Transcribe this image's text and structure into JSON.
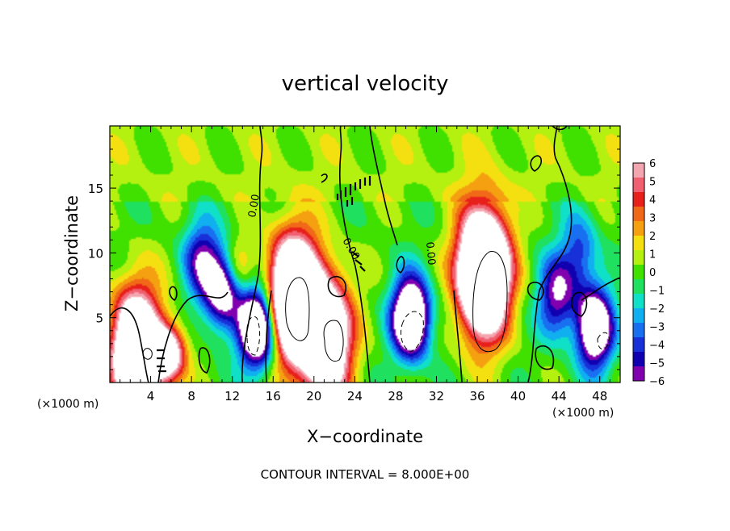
{
  "chart_data": {
    "type": "heatmap",
    "title": "vertical velocity",
    "xlabel": "X−coordinate",
    "ylabel": "Z−coordinate",
    "x_unit": "(×1000 m)",
    "x_unit_right": "(×1000 m)",
    "footer": "CONTOUR INTERVAL = 8.000E+00",
    "xlim": [
      0,
      50
    ],
    "ylim": [
      0,
      19.8
    ],
    "x_ticks": [
      4,
      8,
      12,
      16,
      20,
      24,
      28,
      32,
      36,
      40,
      44,
      48
    ],
    "y_ticks": [
      5,
      10,
      15
    ],
    "contour_label": "0.00",
    "colorbar": {
      "ticks": [
        "6",
        "5",
        "4",
        "3",
        "2",
        "1",
        "0",
        "−1",
        "−2",
        "−3",
        "−4",
        "−5",
        "−6"
      ],
      "vmin": -6,
      "vmax": 6,
      "colors": [
        "#f4a6b0",
        "#f06070",
        "#e8201c",
        "#f06818",
        "#f4a010",
        "#f4e010",
        "#b4f010",
        "#40e000",
        "#20e060",
        "#10e0c8",
        "#10b0f0",
        "#1870f0",
        "#1830d8",
        "#1000b0",
        "#8000b0"
      ],
      "saturated_color": "#ffffff"
    },
    "features": [
      {
        "kind": "updraft",
        "x": 2.6,
        "z": 2.4,
        "peak": 14
      },
      {
        "kind": "updraft",
        "x": 5.8,
        "z": 2.2,
        "peak": 8
      },
      {
        "kind": "updraft",
        "x": 18.0,
        "z": 6.5,
        "peak": 16
      },
      {
        "kind": "updraft",
        "x": 21.2,
        "z": 3.4,
        "peak": 12
      },
      {
        "kind": "updraft",
        "x": 36.6,
        "z": 8.5,
        "peak": 18
      },
      {
        "kind": "updraft",
        "x": 12.6,
        "z": 9.0,
        "peak": 3
      },
      {
        "kind": "downdraft",
        "x": 14.5,
        "z": 4.2,
        "peak": -12
      },
      {
        "kind": "downdraft",
        "x": 29.5,
        "z": 5.0,
        "peak": -12
      },
      {
        "kind": "downdraft",
        "x": 11.0,
        "z": 7.2,
        "peak": -8
      },
      {
        "kind": "downdraft",
        "x": 47.5,
        "z": 4.2,
        "peak": -10
      },
      {
        "kind": "downdraft",
        "x": 43.8,
        "z": 6.6,
        "peak": -6
      },
      {
        "kind": "downdraft",
        "x": 9.0,
        "z": 9.5,
        "peak": -5
      },
      {
        "kind": "downdraft",
        "x": 46.0,
        "z": 10.0,
        "peak": -4
      }
    ]
  }
}
